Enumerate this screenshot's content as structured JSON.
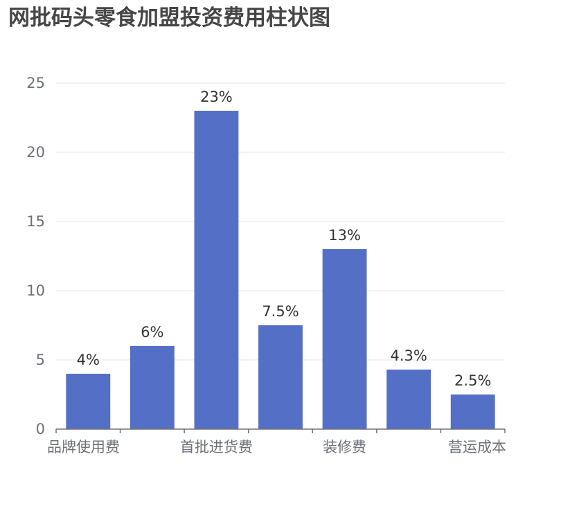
{
  "chart_data": {
    "type": "bar",
    "title": "网批码头零食加盟投资费用柱状图",
    "categories": [
      "品牌使用费",
      "",
      "首批进货费",
      "",
      "装修费",
      "",
      "营运成本"
    ],
    "values": [
      4,
      6,
      23,
      7.5,
      13,
      4.3,
      2.5
    ],
    "data_labels": [
      "4%",
      "6%",
      "23%",
      "7.5%",
      "13%",
      "4.3%",
      "2.5%"
    ],
    "y_ticks": [
      "0",
      "5",
      "10",
      "15",
      "20",
      "25"
    ],
    "ylim": [
      0,
      25
    ],
    "grid": true,
    "colors": {
      "bar": "#5470c6",
      "grid": "#e0e6f1",
      "axis": "#6e7079"
    }
  }
}
